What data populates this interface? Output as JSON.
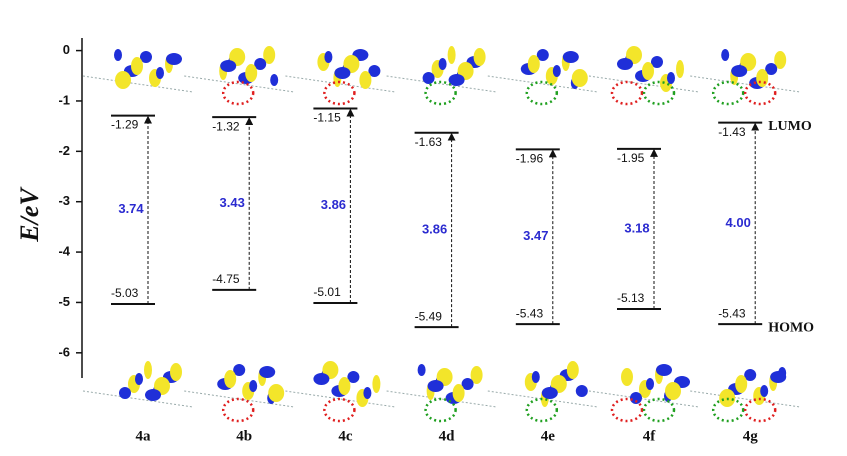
{
  "chart_data": {
    "type": "energy-levels",
    "categories": [
      "4a",
      "4b",
      "4c",
      "4d",
      "4e",
      "4f",
      "4g"
    ],
    "series": [
      {
        "name": "LUMO",
        "values": [
          -1.29,
          -1.32,
          -1.15,
          -1.63,
          -1.96,
          -1.95,
          -1.43
        ]
      },
      {
        "name": "HOMO",
        "values": [
          -5.03,
          -4.75,
          -5.01,
          -5.49,
          -5.43,
          -5.13,
          -5.43
        ]
      }
    ],
    "gaps": {
      "values": [
        3.74,
        3.43,
        3.86,
        3.86,
        3.47,
        3.18,
        4.0
      ],
      "value_labels": [
        "3.74",
        "3.43",
        "3.86",
        "3.86",
        "3.47",
        "3.18",
        "4.00"
      ],
      "color": "#2b2bd0"
    },
    "ylabel": "E/eV",
    "ylim": [
      -6.5,
      0.25
    ],
    "yticks": [
      0,
      -1,
      -2,
      -3,
      -4,
      -5,
      -6
    ]
  }
}
